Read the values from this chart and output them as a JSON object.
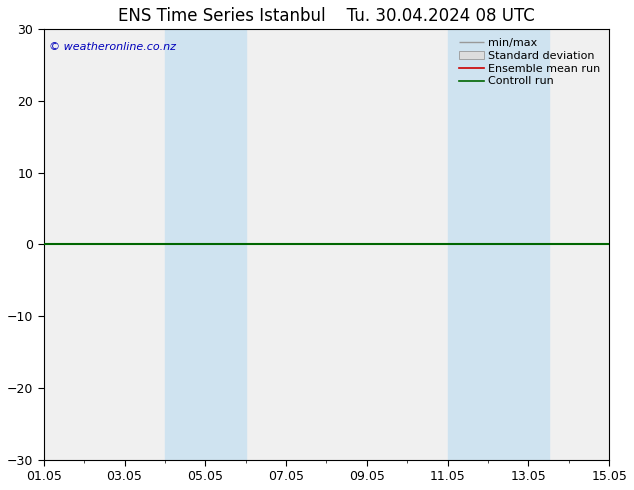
{
  "title": "ENS Time Series Istanbul",
  "subtitle": "Tu. 30.04.2024 08 UTC",
  "watermark": "© weatheronline.co.nz",
  "ylim": [
    -30,
    30
  ],
  "yticks": [
    -30,
    -20,
    -10,
    0,
    10,
    20,
    30
  ],
  "xlabel_dates": [
    "01.05",
    "03.05",
    "05.05",
    "07.05",
    "09.05",
    "11.05",
    "13.05",
    "15.05"
  ],
  "x_tick_positions": [
    0,
    2,
    4,
    6,
    8,
    10,
    12,
    14
  ],
  "xlim": [
    0,
    14
  ],
  "shaded_bands": [
    {
      "x_start": 3.0,
      "x_end": 5.0
    },
    {
      "x_start": 10.0,
      "x_end": 12.5
    }
  ],
  "shade_color": "#cfe3f0",
  "zero_line_color": "#006600",
  "background_color": "#ffffff",
  "plot_bg_color": "#f0f0f0",
  "legend_items": [
    {
      "label": "min/max",
      "color": "#aaaaaa",
      "style": "line_with_caps"
    },
    {
      "label": "Standard deviation",
      "color": "#cccccc",
      "style": "box"
    },
    {
      "label": "Ensemble mean run",
      "color": "#cc0000",
      "style": "line"
    },
    {
      "label": "Controll run",
      "color": "#006600",
      "style": "line"
    }
  ],
  "title_fontsize": 12,
  "tick_fontsize": 9,
  "legend_fontsize": 8,
  "watermark_color": "#0000bb",
  "watermark_fontsize": 8
}
